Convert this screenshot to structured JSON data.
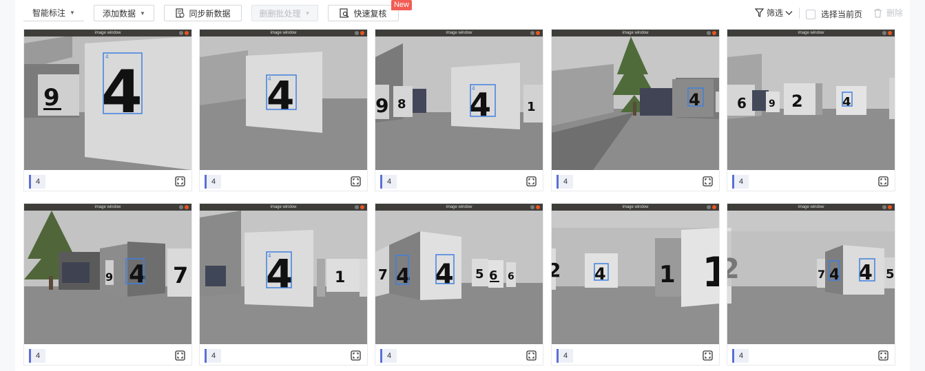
{
  "toolbar": {
    "smart_label": "智能标注",
    "add_data": "添加数据",
    "sync_data": "同步新数据",
    "dedup": "删删批处理",
    "quick_review": "快速复核",
    "new_badge": "New",
    "filter": "筛选",
    "select_page": "选择当前页",
    "delete": "删除"
  },
  "window_title": "image window",
  "cards": [
    {
      "label": "4"
    },
    {
      "label": "4"
    },
    {
      "label": "4"
    },
    {
      "label": "4"
    },
    {
      "label": "4"
    },
    {
      "label": "4"
    },
    {
      "label": "4"
    },
    {
      "label": "4"
    },
    {
      "label": "4"
    },
    {
      "label": "4"
    }
  ],
  "colors": {
    "accent": "#5b6fd6",
    "bbox": "#3f7fe0",
    "badge": "#f25c54"
  }
}
